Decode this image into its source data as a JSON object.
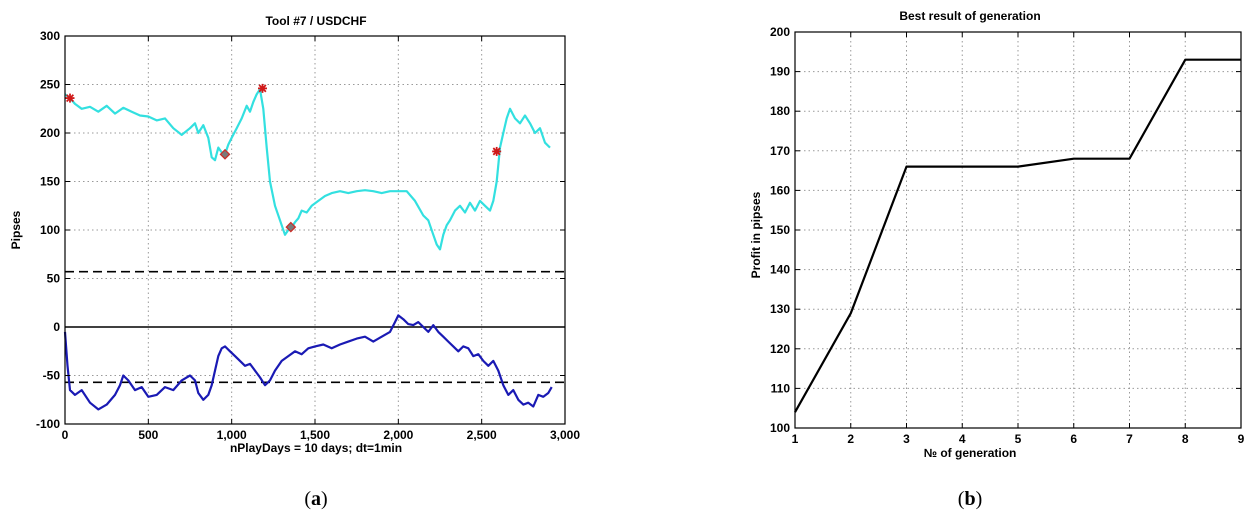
{
  "chart_data": [
    {
      "type": "line",
      "title": "Tool #7 / USDCHF",
      "xlabel": "nPlayDays = 10 days;  dt=1min",
      "ylabel": "Pipses",
      "panel_label": "a",
      "xlim": [
        0,
        3000
      ],
      "ylim": [
        -100,
        300
      ],
      "xticks": [
        0,
        500,
        1000,
        1500,
        2000,
        2500,
        3000
      ],
      "xtick_labels": [
        "0",
        "500",
        "1,000",
        "1,500",
        "2,000",
        "2,500",
        "3,000"
      ],
      "yticks": [
        -100,
        -50,
        0,
        50,
        100,
        150,
        200,
        250,
        300
      ],
      "ytick_labels": [
        "-100",
        "-50",
        "0",
        "50",
        "100",
        "150",
        "200",
        "250",
        "300"
      ],
      "grid": true,
      "series": [
        {
          "color": "#33e0e0",
          "x": [
            0,
            30,
            60,
            100,
            150,
            200,
            250,
            300,
            350,
            400,
            450,
            500,
            550,
            600,
            650,
            700,
            750,
            780,
            800,
            830,
            860,
            880,
            900,
            920,
            940,
            960,
            980,
            1000,
            1030,
            1060,
            1090,
            1110,
            1130,
            1150,
            1170,
            1190,
            1210,
            1230,
            1260,
            1290,
            1320,
            1340,
            1360,
            1380,
            1400,
            1420,
            1450,
            1480,
            1520,
            1560,
            1600,
            1650,
            1700,
            1750,
            1800,
            1850,
            1900,
            1950,
            2000,
            2050,
            2100,
            2150,
            2180,
            2210,
            2230,
            2250,
            2270,
            2290,
            2310,
            2340,
            2370,
            2400,
            2430,
            2460,
            2490,
            2520,
            2550,
            2570,
            2590,
            2610,
            2630,
            2650,
            2670,
            2700,
            2730,
            2760,
            2790,
            2820,
            2850,
            2880,
            2910
          ],
          "values": [
            240,
            236,
            230,
            225,
            227,
            222,
            228,
            220,
            226,
            222,
            218,
            217,
            213,
            215,
            205,
            198,
            205,
            210,
            200,
            208,
            195,
            175,
            172,
            185,
            180,
            178,
            188,
            195,
            205,
            215,
            228,
            222,
            232,
            240,
            245,
            225,
            185,
            150,
            125,
            110,
            95,
            100,
            103,
            108,
            112,
            120,
            118,
            125,
            130,
            135,
            138,
            140,
            138,
            140,
            141,
            140,
            138,
            140,
            140,
            140,
            130,
            115,
            110,
            95,
            85,
            80,
            95,
            105,
            110,
            120,
            125,
            118,
            128,
            120,
            130,
            125,
            120,
            130,
            150,
            185,
            200,
            215,
            225,
            215,
            210,
            218,
            210,
            200,
            205,
            190,
            185
          ]
        },
        {
          "color": "#1a1ab4",
          "x": [
            0,
            15,
            30,
            60,
            100,
            150,
            200,
            250,
            300,
            330,
            350,
            380,
            420,
            460,
            500,
            550,
            600,
            650,
            700,
            750,
            780,
            800,
            830,
            860,
            880,
            900,
            920,
            940,
            960,
            990,
            1020,
            1050,
            1080,
            1110,
            1140,
            1170,
            1200,
            1230,
            1260,
            1300,
            1340,
            1380,
            1420,
            1460,
            1500,
            1550,
            1600,
            1650,
            1700,
            1750,
            1800,
            1850,
            1900,
            1950,
            1980,
            2000,
            2030,
            2060,
            2090,
            2120,
            2150,
            2180,
            2210,
            2240,
            2270,
            2300,
            2330,
            2360,
            2390,
            2420,
            2450,
            2480,
            2510,
            2540,
            2570,
            2600,
            2630,
            2660,
            2690,
            2720,
            2750,
            2780,
            2810,
            2840,
            2870,
            2900,
            2920
          ],
          "values": [
            -5,
            -40,
            -65,
            -70,
            -65,
            -78,
            -85,
            -80,
            -70,
            -60,
            -50,
            -55,
            -65,
            -62,
            -72,
            -70,
            -62,
            -65,
            -55,
            -50,
            -55,
            -68,
            -75,
            -70,
            -60,
            -45,
            -30,
            -22,
            -20,
            -25,
            -30,
            -35,
            -40,
            -38,
            -45,
            -52,
            -60,
            -55,
            -45,
            -35,
            -30,
            -25,
            -28,
            -22,
            -20,
            -18,
            -22,
            -18,
            -15,
            -12,
            -10,
            -15,
            -10,
            -5,
            5,
            12,
            8,
            3,
            2,
            5,
            0,
            -5,
            2,
            -5,
            -10,
            -15,
            -20,
            -25,
            -20,
            -22,
            -30,
            -28,
            -35,
            -40,
            -35,
            -45,
            -60,
            -70,
            -65,
            -75,
            -80,
            -78,
            -82,
            -70,
            -72,
            -68,
            -62
          ]
        }
      ],
      "reference_lines": [
        {
          "y": 57,
          "style": "dashed",
          "color": "#000000"
        },
        {
          "y": -57,
          "style": "dashed",
          "color": "#000000"
        },
        {
          "y": 0,
          "style": "solid",
          "color": "#000000"
        }
      ],
      "markers_star": [
        {
          "x": 30,
          "y": 236
        },
        {
          "x": 1185,
          "y": 246
        },
        {
          "x": 2590,
          "y": 181
        }
      ],
      "markers_diamond": [
        {
          "x": 960,
          "y": 178
        },
        {
          "x": 1355,
          "y": 103
        }
      ]
    },
    {
      "type": "line",
      "title": "Best result of generation",
      "xlabel": "№ of generation",
      "ylabel": "Profit in pipses",
      "panel_label": "b",
      "xlim": [
        1,
        9
      ],
      "ylim": [
        100,
        200
      ],
      "xticks": [
        1,
        2,
        3,
        4,
        5,
        6,
        7,
        8,
        9
      ],
      "xtick_labels": [
        "1",
        "2",
        "3",
        "4",
        "5",
        "6",
        "7",
        "8",
        "9"
      ],
      "yticks": [
        100,
        110,
        120,
        130,
        140,
        150,
        160,
        170,
        180,
        190,
        200
      ],
      "ytick_labels": [
        "100",
        "110",
        "120",
        "130",
        "140",
        "150",
        "160",
        "170",
        "180",
        "190",
        "200"
      ],
      "grid": true,
      "series": [
        {
          "color": "#000000",
          "x": [
            1,
            2,
            3,
            4,
            5,
            6,
            7,
            8,
            9
          ],
          "values": [
            104,
            129,
            166,
            166,
            166,
            168,
            168,
            193,
            193
          ]
        }
      ]
    }
  ]
}
